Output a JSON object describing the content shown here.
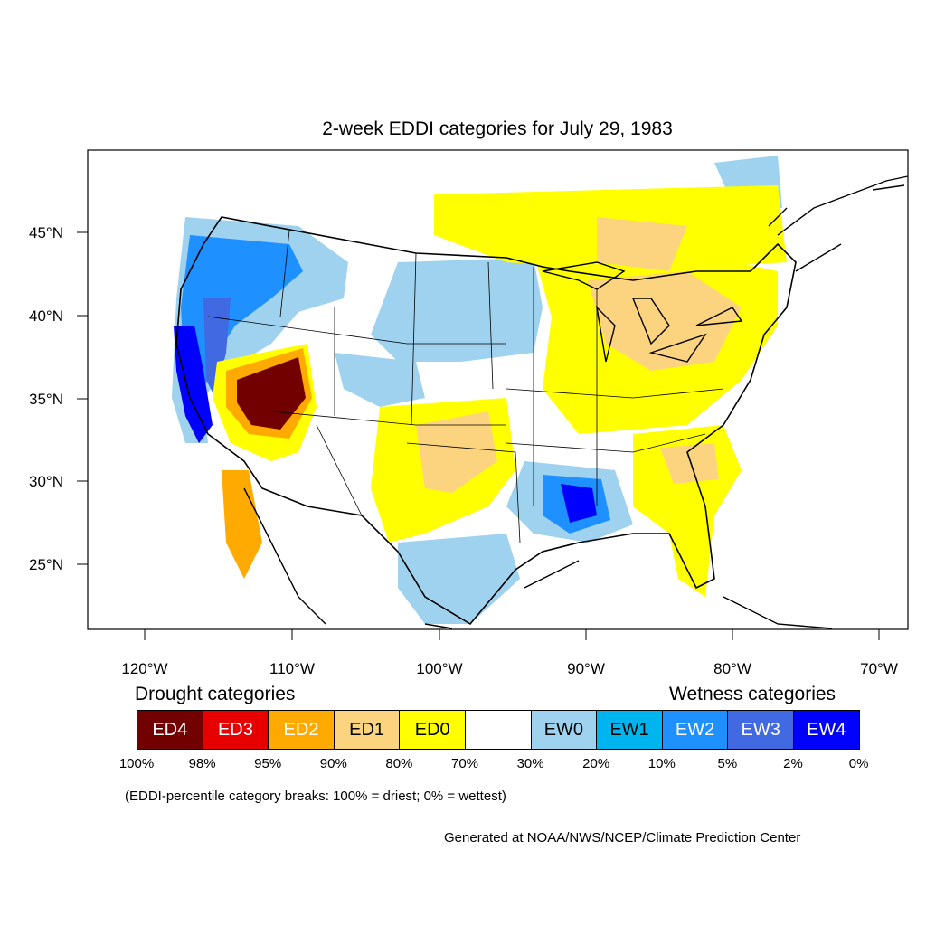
{
  "title": "2-week EDDI categories for July 29, 1983",
  "axes": {
    "lat_labels": [
      "45°N",
      "40°N",
      "35°N",
      "30°N",
      "25°N"
    ],
    "lon_labels": [
      "120°W",
      "110°W",
      "100°W",
      "90°W",
      "80°W",
      "70°W"
    ]
  },
  "legend": {
    "drought_heading": "Drought categories",
    "wetness_heading": "Wetness categories",
    "categories": [
      {
        "label": "ED4",
        "color": "#730000",
        "text_color": "#ffffff"
      },
      {
        "label": "ED3",
        "color": "#e60000",
        "text_color": "#ffffff"
      },
      {
        "label": "ED2",
        "color": "#ffaa00",
        "text_color": "#ffffff"
      },
      {
        "label": "ED1",
        "color": "#fcd37f",
        "text_color": "#000000"
      },
      {
        "label": "ED0",
        "color": "#ffff00",
        "text_color": "#000000"
      },
      {
        "label": "",
        "color": "#ffffff",
        "text_color": "#000000"
      },
      {
        "label": "EW0",
        "color": "#9fd2ef",
        "text_color": "#000000"
      },
      {
        "label": "EW1",
        "color": "#00b4f0",
        "text_color": "#000000"
      },
      {
        "label": "EW2",
        "color": "#1e90ff",
        "text_color": "#ffffff"
      },
      {
        "label": "EW3",
        "color": "#4169e1",
        "text_color": "#ffffff"
      },
      {
        "label": "EW4",
        "color": "#0000ff",
        "text_color": "#ffffff"
      }
    ],
    "breaks": [
      "100%",
      "98%",
      "95%",
      "90%",
      "80%",
      "70%",
      "30%",
      "20%",
      "10%",
      "5%",
      "2%",
      "0%"
    ]
  },
  "note": "(EDDI-percentile category breaks: 100% = driest; 0% = wettest)",
  "credit": "Generated at NOAA/NWS/NCEP/Climate Prediction Center"
}
